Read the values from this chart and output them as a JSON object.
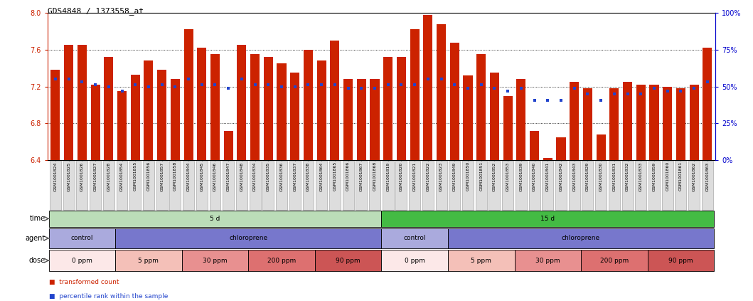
{
  "title": "GDS4848 / 1373558_at",
  "samples": [
    "GSM1001824",
    "GSM1001825",
    "GSM1001826",
    "GSM1001827",
    "GSM1001828",
    "GSM1001854",
    "GSM1001855",
    "GSM1001856",
    "GSM1001857",
    "GSM1001858",
    "GSM1001844",
    "GSM1001845",
    "GSM1001846",
    "GSM1001847",
    "GSM1001848",
    "GSM1001834",
    "GSM1001835",
    "GSM1001836",
    "GSM1001837",
    "GSM1001838",
    "GSM1001864",
    "GSM1001865",
    "GSM1001866",
    "GSM1001867",
    "GSM1001868",
    "GSM1001819",
    "GSM1001820",
    "GSM1001821",
    "GSM1001822",
    "GSM1001823",
    "GSM1001849",
    "GSM1001850",
    "GSM1001851",
    "GSM1001852",
    "GSM1001853",
    "GSM1001839",
    "GSM1001840",
    "GSM1001841",
    "GSM1001842",
    "GSM1001843",
    "GSM1001829",
    "GSM1001830",
    "GSM1001831",
    "GSM1001832",
    "GSM1001833",
    "GSM1001859",
    "GSM1001860",
    "GSM1001861",
    "GSM1001862",
    "GSM1001863"
  ],
  "bar_values": [
    7.38,
    7.65,
    7.65,
    7.22,
    7.52,
    7.15,
    7.33,
    7.48,
    7.38,
    7.28,
    7.82,
    7.62,
    7.55,
    6.72,
    7.65,
    7.55,
    7.52,
    7.45,
    7.35,
    7.6,
    7.48,
    7.7,
    7.28,
    7.28,
    7.28,
    7.52,
    7.52,
    7.82,
    7.98,
    7.88,
    7.68,
    7.32,
    7.55,
    7.35,
    7.1,
    7.28,
    6.72,
    6.42,
    6.65,
    7.25,
    7.18,
    6.68,
    7.18,
    7.25,
    7.22,
    7.22,
    7.2,
    7.18,
    7.22,
    7.62
  ],
  "percentile_values": [
    7.28,
    7.28,
    7.25,
    7.22,
    7.2,
    7.15,
    7.22,
    7.2,
    7.22,
    7.2,
    7.28,
    7.22,
    7.22,
    7.18,
    7.28,
    7.22,
    7.22,
    7.2,
    7.2,
    7.22,
    7.22,
    7.22,
    7.18,
    7.18,
    7.18,
    7.22,
    7.22,
    7.22,
    7.28,
    7.28,
    7.22,
    7.18,
    7.22,
    7.18,
    7.15,
    7.18,
    7.05,
    7.05,
    7.05,
    7.18,
    7.12,
    7.05,
    7.12,
    7.12,
    7.12,
    7.18,
    7.15,
    7.15,
    7.18,
    7.25
  ],
  "ylim_left": [
    6.4,
    8.0
  ],
  "yticks_left": [
    6.4,
    6.8,
    7.2,
    7.6,
    8.0
  ],
  "ylim_right": [
    0,
    100
  ],
  "yticks_right": [
    0,
    25,
    50,
    75,
    100
  ],
  "bar_color": "#cc2200",
  "dot_color": "#2244cc",
  "time_groups": [
    {
      "label": "5 d",
      "start": 0,
      "end": 24,
      "color": "#bbddb8"
    },
    {
      "label": "15 d",
      "start": 25,
      "end": 49,
      "color": "#44bb44"
    }
  ],
  "agent_groups": [
    {
      "label": "control",
      "start": 0,
      "end": 4,
      "color": "#aaaadd"
    },
    {
      "label": "chloroprene",
      "start": 5,
      "end": 24,
      "color": "#7777cc"
    },
    {
      "label": "control",
      "start": 25,
      "end": 29,
      "color": "#aaaadd"
    },
    {
      "label": "chloroprene",
      "start": 30,
      "end": 49,
      "color": "#7777cc"
    }
  ],
  "dose_groups": [
    {
      "label": "0 ppm",
      "start": 0,
      "end": 4,
      "color": "#fce8e8"
    },
    {
      "label": "5 ppm",
      "start": 5,
      "end": 9,
      "color": "#f4c0b8"
    },
    {
      "label": "30 ppm",
      "start": 10,
      "end": 14,
      "color": "#e89090"
    },
    {
      "label": "200 ppm",
      "start": 15,
      "end": 19,
      "color": "#dd7070"
    },
    {
      "label": "90 ppm",
      "start": 20,
      "end": 24,
      "color": "#cc5555"
    },
    {
      "label": "0 ppm",
      "start": 25,
      "end": 29,
      "color": "#fce8e8"
    },
    {
      "label": "5 ppm",
      "start": 30,
      "end": 34,
      "color": "#f4c0b8"
    },
    {
      "label": "30 ppm",
      "start": 35,
      "end": 39,
      "color": "#e89090"
    },
    {
      "label": "200 ppm",
      "start": 40,
      "end": 44,
      "color": "#dd7070"
    },
    {
      "label": "90 ppm",
      "start": 45,
      "end": 49,
      "color": "#cc5555"
    }
  ],
  "legend_items": [
    {
      "label": "transformed count",
      "color": "#cc2200"
    },
    {
      "label": "percentile rank within the sample",
      "color": "#2244cc"
    }
  ],
  "row_labels": [
    "time",
    "agent",
    "dose"
  ],
  "background_color": "#ffffff",
  "axis_color_left": "#cc2200",
  "axis_color_right": "#0000cc",
  "label_box_color": "#dddddd",
  "label_box_edgecolor": "#999999"
}
